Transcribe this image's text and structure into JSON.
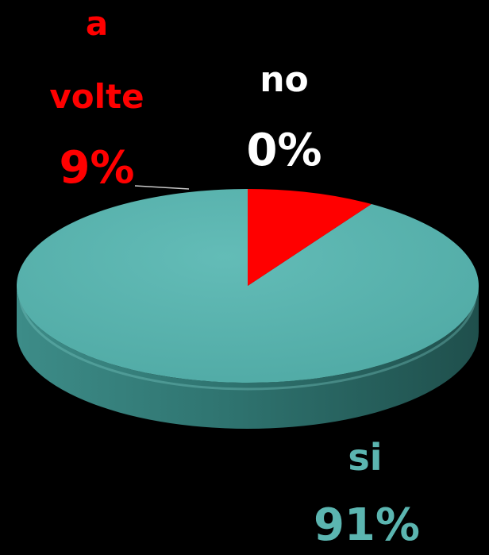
{
  "chart_data": {
    "type": "pie",
    "slices": [
      {
        "name": "si",
        "label": "si",
        "value": 91,
        "value_label": "91%",
        "color": "#5bb5b0"
      },
      {
        "name": "a volte",
        "label_lines": [
          "a",
          "volte"
        ],
        "value": 9,
        "value_label": "9%",
        "color": "#ff0000"
      },
      {
        "name": "no",
        "label": "no",
        "value": 0,
        "value_label": "0%",
        "color": "#ffffff"
      }
    ],
    "style": "3d",
    "background": "#000000"
  }
}
